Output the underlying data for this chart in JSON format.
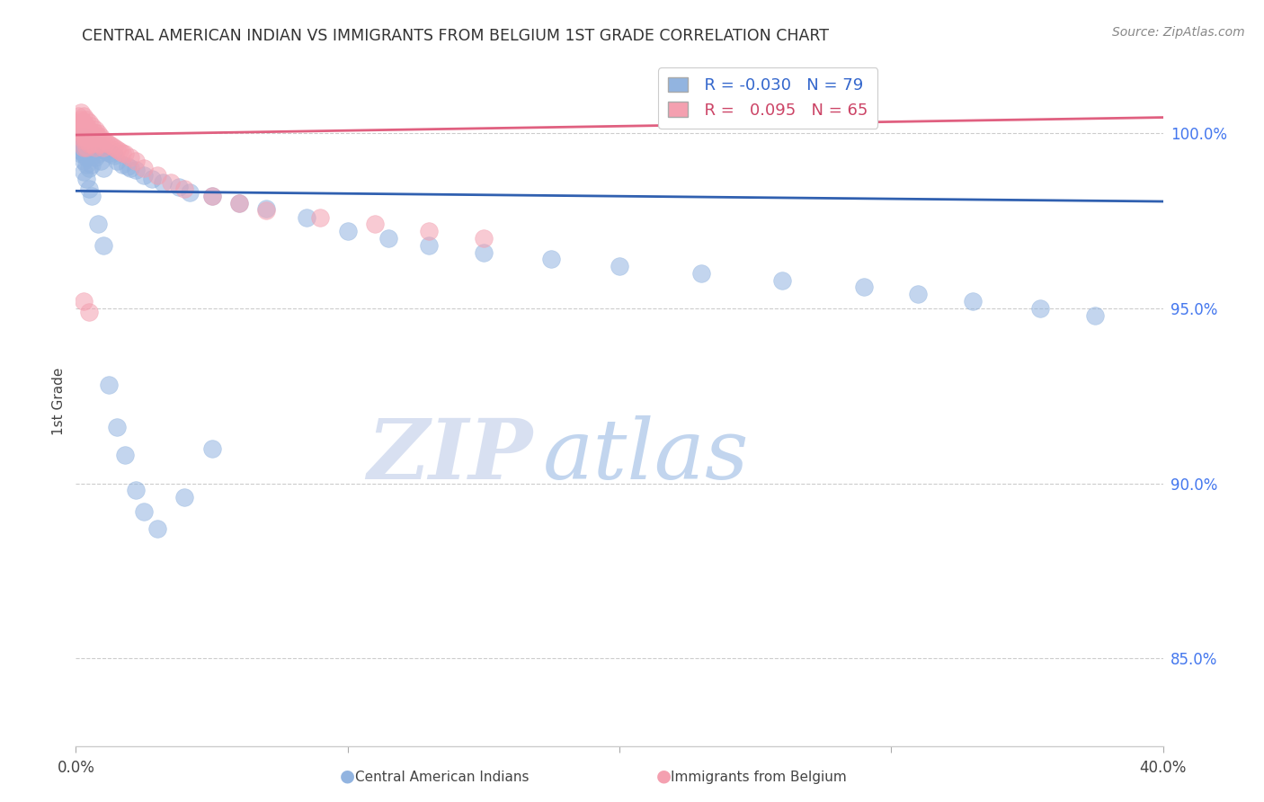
{
  "title": "CENTRAL AMERICAN INDIAN VS IMMIGRANTS FROM BELGIUM 1ST GRADE CORRELATION CHART",
  "source": "Source: ZipAtlas.com",
  "ylabel": "1st Grade",
  "ylabel_ticks": [
    "100.0%",
    "95.0%",
    "90.0%",
    "85.0%"
  ],
  "ylabel_tick_vals": [
    1.0,
    0.95,
    0.9,
    0.85
  ],
  "xlim": [
    0.0,
    0.4
  ],
  "ylim": [
    0.825,
    1.022
  ],
  "legend_blue_r": "-0.030",
  "legend_blue_n": "79",
  "legend_pink_r": "0.095",
  "legend_pink_n": "65",
  "blue_color": "#92B4E0",
  "pink_color": "#F4A0B0",
  "blue_line_color": "#3060B0",
  "pink_line_color": "#E06080",
  "watermark_zip": "ZIP",
  "watermark_atlas": "atlas",
  "blue_trendline_y0": 0.9835,
  "blue_trendline_y1": 0.9805,
  "pink_trendline_y0": 0.9995,
  "pink_trendline_y1": 1.0045,
  "blue_scatter_x": [
    0.001,
    0.001,
    0.002,
    0.002,
    0.002,
    0.002,
    0.002,
    0.003,
    0.003,
    0.003,
    0.003,
    0.003,
    0.004,
    0.004,
    0.004,
    0.004,
    0.004,
    0.005,
    0.005,
    0.005,
    0.005,
    0.006,
    0.006,
    0.006,
    0.006,
    0.007,
    0.007,
    0.007,
    0.008,
    0.008,
    0.009,
    0.009,
    0.01,
    0.01,
    0.011,
    0.012,
    0.013,
    0.014,
    0.015,
    0.017,
    0.019,
    0.02,
    0.022,
    0.025,
    0.028,
    0.032,
    0.038,
    0.042,
    0.05,
    0.06,
    0.07,
    0.085,
    0.1,
    0.115,
    0.13,
    0.15,
    0.175,
    0.2,
    0.23,
    0.26,
    0.29,
    0.31,
    0.33,
    0.355,
    0.375,
    0.003,
    0.004,
    0.005,
    0.006,
    0.008,
    0.01,
    0.012,
    0.015,
    0.018,
    0.022,
    0.025,
    0.03,
    0.04,
    0.05
  ],
  "blue_scatter_y": [
    0.999,
    0.998,
    0.999,
    0.997,
    0.996,
    0.995,
    0.994,
    0.999,
    0.998,
    0.996,
    0.994,
    0.992,
    0.9985,
    0.997,
    0.995,
    0.993,
    0.991,
    0.998,
    0.996,
    0.994,
    0.99,
    0.9975,
    0.996,
    0.994,
    0.991,
    0.997,
    0.995,
    0.993,
    0.9965,
    0.994,
    0.996,
    0.992,
    0.9955,
    0.99,
    0.995,
    0.9945,
    0.994,
    0.9935,
    0.992,
    0.991,
    0.9905,
    0.99,
    0.9895,
    0.988,
    0.987,
    0.986,
    0.9845,
    0.983,
    0.982,
    0.98,
    0.9785,
    0.976,
    0.972,
    0.97,
    0.968,
    0.966,
    0.964,
    0.962,
    0.96,
    0.958,
    0.956,
    0.954,
    0.952,
    0.95,
    0.948,
    0.989,
    0.987,
    0.984,
    0.982,
    0.974,
    0.968,
    0.928,
    0.916,
    0.908,
    0.898,
    0.892,
    0.887,
    0.896,
    0.91
  ],
  "pink_scatter_x": [
    0.001,
    0.001,
    0.001,
    0.002,
    0.002,
    0.002,
    0.002,
    0.002,
    0.002,
    0.003,
    0.003,
    0.003,
    0.003,
    0.003,
    0.003,
    0.003,
    0.004,
    0.004,
    0.004,
    0.004,
    0.004,
    0.004,
    0.005,
    0.005,
    0.005,
    0.005,
    0.005,
    0.006,
    0.006,
    0.006,
    0.006,
    0.007,
    0.007,
    0.007,
    0.007,
    0.008,
    0.008,
    0.008,
    0.009,
    0.009,
    0.01,
    0.01,
    0.011,
    0.012,
    0.013,
    0.014,
    0.015,
    0.016,
    0.017,
    0.018,
    0.02,
    0.022,
    0.025,
    0.03,
    0.035,
    0.04,
    0.05,
    0.06,
    0.07,
    0.09,
    0.11,
    0.13,
    0.15,
    0.003,
    0.005
  ],
  "pink_scatter_y": [
    1.005,
    1.003,
    1.001,
    1.006,
    1.004,
    1.002,
    1.001,
    1.0,
    0.999,
    1.005,
    1.003,
    1.001,
    1.0,
    0.999,
    0.998,
    0.996,
    1.004,
    1.002,
    1.0,
    0.999,
    0.998,
    0.996,
    1.003,
    1.001,
    1.0,
    0.999,
    0.997,
    1.002,
    1.0,
    0.999,
    0.997,
    1.001,
    1.0,
    0.999,
    0.996,
    1.0,
    0.999,
    0.997,
    0.999,
    0.997,
    0.998,
    0.996,
    0.9975,
    0.997,
    0.9965,
    0.996,
    0.9955,
    0.995,
    0.9945,
    0.994,
    0.993,
    0.992,
    0.99,
    0.988,
    0.986,
    0.984,
    0.982,
    0.98,
    0.978,
    0.976,
    0.974,
    0.972,
    0.97,
    0.952,
    0.949
  ]
}
